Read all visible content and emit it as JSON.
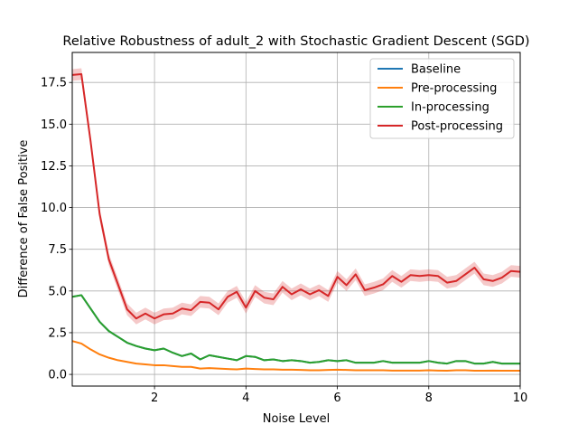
{
  "chart_data": {
    "type": "line",
    "title": "Relative Robustness of adult_2 with Stochastic Gradient Descent (SGD)",
    "xlabel": "Noise Level",
    "ylabel": "Difference of False Positive",
    "xlim": [
      0.2,
      10
    ],
    "ylim": [
      -0.7,
      19.3
    ],
    "xticks": [
      2,
      4,
      6,
      8,
      10
    ],
    "yticks": [
      0.0,
      2.5,
      5.0,
      7.5,
      10.0,
      12.5,
      15.0,
      17.5
    ],
    "ytick_labels": [
      "0.0",
      "2.5",
      "5.0",
      "7.5",
      "10.0",
      "12.5",
      "15.0",
      "17.5"
    ],
    "grid": true,
    "legend_position": "top-right",
    "x": [
      0.2,
      0.4,
      0.6,
      0.8,
      1.0,
      1.2,
      1.4,
      1.6,
      1.8,
      2.0,
      2.2,
      2.4,
      2.6,
      2.8,
      3.0,
      3.2,
      3.4,
      3.6,
      3.8,
      4.0,
      4.2,
      4.4,
      4.6,
      4.8,
      5.0,
      5.2,
      5.4,
      5.6,
      5.8,
      6.0,
      6.2,
      6.4,
      6.6,
      6.8,
      7.0,
      7.2,
      7.4,
      7.6,
      7.8,
      8.0,
      8.2,
      8.4,
      8.6,
      8.8,
      9.0,
      9.2,
      9.4,
      9.6,
      9.8,
      10.0
    ],
    "series": [
      {
        "name": "Baseline",
        "color": "#1f77b4",
        "values": [
          4.65,
          4.75,
          3.95,
          3.15,
          2.6,
          2.25,
          1.9,
          1.7,
          1.55,
          1.45,
          1.55,
          1.3,
          1.1,
          1.25,
          0.9,
          1.15,
          1.05,
          0.95,
          0.85,
          1.1,
          1.05,
          0.85,
          0.9,
          0.8,
          0.85,
          0.8,
          0.7,
          0.75,
          0.85,
          0.8,
          0.85,
          0.7,
          0.7,
          0.7,
          0.8,
          0.7,
          0.7,
          0.7,
          0.7,
          0.8,
          0.7,
          0.65,
          0.8,
          0.8,
          0.65,
          0.65,
          0.75,
          0.65,
          0.65,
          0.65
        ]
      },
      {
        "name": "Pre-processing",
        "color": "#ff7f0e",
        "values": [
          2.0,
          1.85,
          1.5,
          1.2,
          1.0,
          0.85,
          0.75,
          0.65,
          0.6,
          0.55,
          0.55,
          0.5,
          0.45,
          0.45,
          0.35,
          0.38,
          0.35,
          0.32,
          0.3,
          0.35,
          0.32,
          0.3,
          0.3,
          0.28,
          0.28,
          0.27,
          0.25,
          0.25,
          0.27,
          0.28,
          0.27,
          0.25,
          0.25,
          0.25,
          0.25,
          0.23,
          0.23,
          0.23,
          0.23,
          0.25,
          0.23,
          0.22,
          0.25,
          0.25,
          0.22,
          0.22,
          0.23,
          0.22,
          0.22,
          0.22
        ]
      },
      {
        "name": "In-processing",
        "color": "#2ca02c",
        "values": [
          4.65,
          4.75,
          3.95,
          3.15,
          2.6,
          2.25,
          1.9,
          1.7,
          1.55,
          1.45,
          1.55,
          1.3,
          1.1,
          1.25,
          0.9,
          1.15,
          1.05,
          0.95,
          0.85,
          1.1,
          1.05,
          0.85,
          0.9,
          0.8,
          0.85,
          0.8,
          0.7,
          0.75,
          0.85,
          0.8,
          0.85,
          0.7,
          0.7,
          0.7,
          0.8,
          0.7,
          0.7,
          0.7,
          0.7,
          0.8,
          0.7,
          0.65,
          0.8,
          0.8,
          0.65,
          0.65,
          0.75,
          0.65,
          0.65,
          0.65
        ]
      },
      {
        "name": "Post-processing",
        "color": "#d62728",
        "values": [
          17.95,
          18.0,
          14.0,
          9.6,
          6.9,
          5.4,
          3.9,
          3.35,
          3.65,
          3.35,
          3.6,
          3.65,
          3.95,
          3.85,
          4.35,
          4.3,
          3.9,
          4.65,
          4.95,
          4.0,
          5.0,
          4.6,
          4.5,
          5.25,
          4.8,
          5.1,
          4.8,
          5.05,
          4.7,
          5.85,
          5.35,
          6.0,
          5.05,
          5.2,
          5.4,
          5.9,
          5.55,
          5.95,
          5.9,
          5.95,
          5.9,
          5.5,
          5.6,
          6.0,
          6.4,
          5.7,
          5.6,
          5.8,
          6.2,
          6.15
        ],
        "band": 0.35
      }
    ]
  }
}
